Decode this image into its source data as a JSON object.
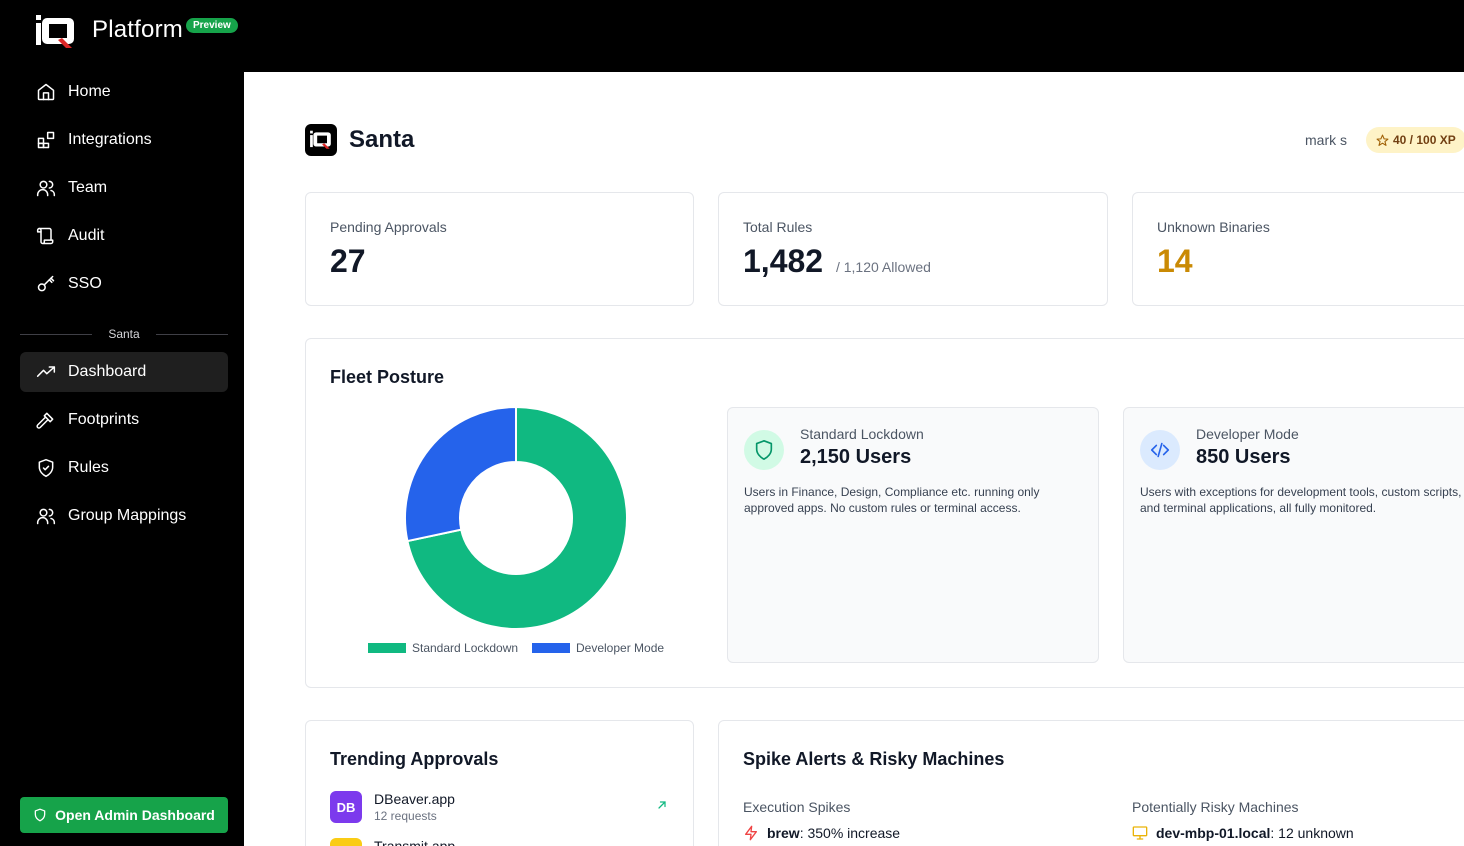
{
  "brand": {
    "name": "Platform",
    "badge": "Preview"
  },
  "sidebar": {
    "items": [
      {
        "label": "Home",
        "icon": "home-icon"
      },
      {
        "label": "Integrations",
        "icon": "blocks-icon"
      },
      {
        "label": "Team",
        "icon": "users-icon"
      },
      {
        "label": "Audit",
        "icon": "scroll-icon"
      },
      {
        "label": "SSO",
        "icon": "key-icon"
      }
    ],
    "section_label": "Santa",
    "section_items": [
      {
        "label": "Dashboard",
        "icon": "trending-up-icon",
        "active": true
      },
      {
        "label": "Footprints",
        "icon": "hammer-icon"
      },
      {
        "label": "Rules",
        "icon": "shield-check-icon"
      },
      {
        "label": "Group Mappings",
        "icon": "users-icon"
      }
    ],
    "admin_button": "Open Admin Dashboard"
  },
  "header": {
    "title": "Santa",
    "user": "mark s",
    "xp": "40 / 100 XP"
  },
  "stats": {
    "pending": {
      "label": "Pending Approvals",
      "value": "27"
    },
    "rules": {
      "label": "Total Rules",
      "value": "1,482",
      "sub": "/ 1,120 Allowed"
    },
    "unknown": {
      "label": "Unknown Binaries",
      "value": "14"
    }
  },
  "fleet": {
    "title": "Fleet Posture",
    "standard": {
      "label": "Standard Lockdown",
      "value": "2,150 Users",
      "desc": "Users in Finance, Design, Compliance etc. running only approved apps. No custom rules or terminal access."
    },
    "developer": {
      "label": "Developer Mode",
      "value": "850 Users",
      "desc": "Users with exceptions for development tools, custom scripts, and terminal applications, all fully monitored."
    }
  },
  "chart_data": {
    "type": "pie",
    "categories": [
      "Standard Lockdown",
      "Developer Mode"
    ],
    "values": [
      2150,
      850
    ],
    "colors": [
      "#10b981",
      "#2563eb"
    ],
    "legend": "bottom"
  },
  "trending": {
    "title": "Trending Approvals",
    "items": [
      {
        "initials": "DB",
        "name": "DBeaver.app",
        "sub": "12 requests",
        "color": "#7c3aed"
      },
      {
        "initials": "",
        "name": "Transmit.app",
        "sub": "",
        "color": "#facc15"
      }
    ]
  },
  "spikes": {
    "title": "Spike Alerts & Risky Machines",
    "exec_heading": "Execution Spikes",
    "exec_item": {
      "name": "brew",
      "detail": ": 350% increase"
    },
    "risky_heading": "Potentially Risky Machines",
    "risky_item": {
      "name": "dev-mbp-01.local",
      "detail": ": 12 unknown"
    }
  }
}
